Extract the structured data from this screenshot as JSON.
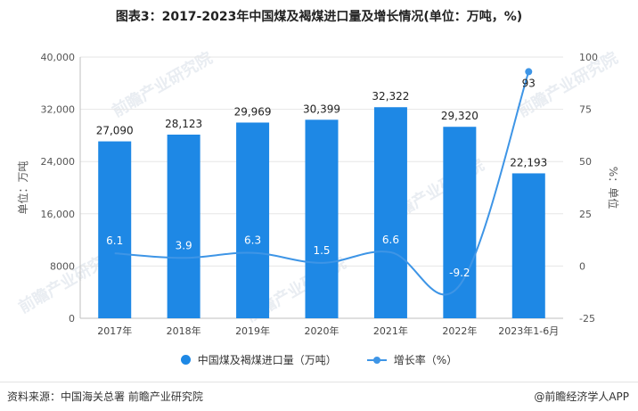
{
  "title": "图表3：2017-2023年中国煤及褐煤进口量及增长情况(单位：万吨，%)",
  "source": "资料来源：中国海关总署 前瞻产业研究院",
  "brand": "@前瞻经济学人APP",
  "watermark": "前瞻产业研究院",
  "chart_data": {
    "type": "bar",
    "categories": [
      "2017年",
      "2018年",
      "2019年",
      "2020年",
      "2021年",
      "2022年",
      "2023年1-6月"
    ],
    "series": [
      {
        "name": "中国煤及褐煤进口量（万吨）",
        "type": "bar",
        "axis": "left",
        "color": "#1e88e5",
        "values": [
          27090,
          28123,
          29969,
          30399,
          32322,
          29320,
          22193
        ],
        "labels": [
          "27,090",
          "28,123",
          "29,969",
          "30,399",
          "32,322",
          "29,320",
          "22,193"
        ]
      },
      {
        "name": "增长率（%）",
        "type": "line",
        "axis": "right",
        "color": "#3e95e6",
        "values": [
          6.1,
          3.9,
          6.3,
          1.5,
          6.6,
          -9.2,
          93
        ],
        "labels": [
          "6.1",
          "3.9",
          "6.3",
          "1.5",
          "6.6",
          "-9.2",
          "93"
        ]
      }
    ],
    "ylabel": "单位：万吨",
    "y2label": "%：单位",
    "ylim": [
      0,
      40000
    ],
    "y2lim": [
      -25,
      100
    ],
    "yticks": [
      "0",
      "8000",
      "16,000",
      "24,000",
      "32,000",
      "40,000"
    ],
    "y2ticks": [
      "-25",
      "0",
      "25",
      "50",
      "75",
      "100"
    ],
    "legend_position": "bottom"
  }
}
